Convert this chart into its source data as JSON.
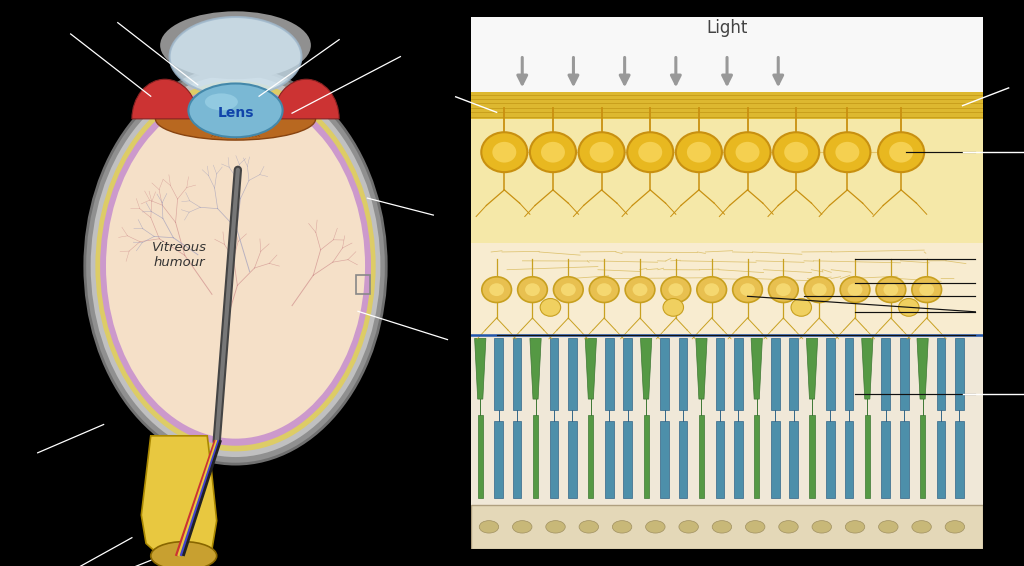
{
  "bg_color": "#000000",
  "vitreous_color": "#f5e0c8",
  "sclera_outer": "#8a8a8a",
  "sclera_inner": "#c0c0c0",
  "retina_yellow": "#e8d080",
  "choroid_purple": "#cc99cc",
  "lens_color": "#7ab8d4",
  "iris_color": "#b86820",
  "ciliary_color": "#cc3333",
  "cornea_color": "#c8dce8",
  "optic_nerve_yellow": "#e8c840",
  "blood_r": "#cc8888",
  "blood_b": "#9999cc",
  "ganglion_fill": "#e8b830",
  "ganglion_inner": "#f5d060",
  "bipolar_fill": "#e8c870",
  "rod_color": "#5599bb",
  "cone_color": "#66aa55",
  "panel_bg": "#f5e8c0",
  "fiber_band": "#ddb830",
  "light_text": "Light",
  "vitreous_text": "Vitreous\nhumour",
  "lens_text": "Lens"
}
